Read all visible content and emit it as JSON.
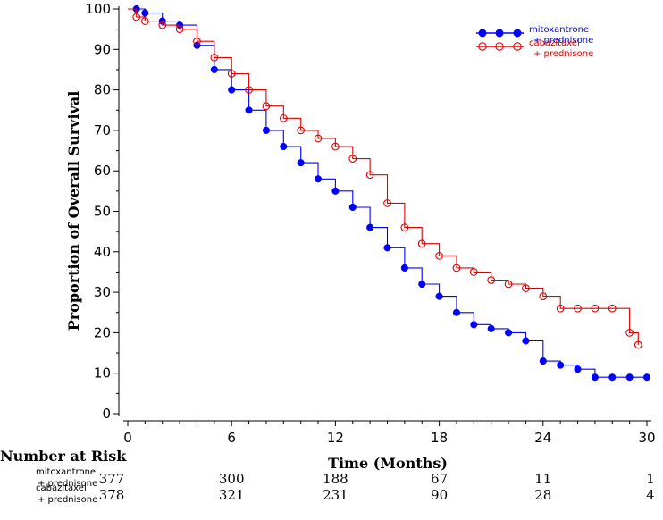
{
  "chart_data": {
    "type": "line",
    "subtype": "kaplan-meier",
    "xlabel": "Time (Months)",
    "ylabel": "Proportion of Overall Survival",
    "xlim": [
      0,
      30
    ],
    "ylim": [
      0,
      100
    ],
    "xticks": [
      0,
      6,
      12,
      18,
      24,
      30
    ],
    "yticks": [
      0,
      10,
      20,
      30,
      40,
      50,
      60,
      70,
      80,
      90,
      100
    ],
    "grid": false,
    "legend_position": "top-right",
    "series": [
      {
        "name": "mitoxantrone\n+ prednisone",
        "color": "#0000ff",
        "marker": "filled-circle",
        "points": [
          [
            0,
            100
          ],
          [
            0.5,
            100
          ],
          [
            1,
            99
          ],
          [
            2,
            97
          ],
          [
            3,
            96
          ],
          [
            4,
            91
          ],
          [
            5,
            85
          ],
          [
            6,
            80
          ],
          [
            7,
            75
          ],
          [
            8,
            70
          ],
          [
            9,
            66
          ],
          [
            10,
            62
          ],
          [
            11,
            58
          ],
          [
            12,
            55
          ],
          [
            13,
            51
          ],
          [
            14,
            46
          ],
          [
            15,
            41
          ],
          [
            16,
            36
          ],
          [
            17,
            32
          ],
          [
            18,
            29
          ],
          [
            19,
            25
          ],
          [
            20,
            22
          ],
          [
            21,
            21
          ],
          [
            22,
            20
          ],
          [
            23,
            18
          ],
          [
            24,
            13
          ],
          [
            25,
            12
          ],
          [
            26,
            11
          ],
          [
            27,
            9
          ],
          [
            28,
            9
          ],
          [
            29,
            9
          ],
          [
            30,
            9
          ]
        ]
      },
      {
        "name": "cabazitaxel\n+ prednisone",
        "color": "#e00000",
        "marker": "open-circle",
        "points": [
          [
            0,
            100
          ],
          [
            0.5,
            98
          ],
          [
            1,
            97
          ],
          [
            2,
            96
          ],
          [
            3,
            95
          ],
          [
            4,
            92
          ],
          [
            5,
            88
          ],
          [
            6,
            84
          ],
          [
            7,
            80
          ],
          [
            8,
            76
          ],
          [
            9,
            73
          ],
          [
            10,
            70
          ],
          [
            11,
            68
          ],
          [
            12,
            66
          ],
          [
            13,
            63
          ],
          [
            14,
            59
          ],
          [
            15,
            52
          ],
          [
            16,
            46
          ],
          [
            17,
            42
          ],
          [
            18,
            39
          ],
          [
            19,
            36
          ],
          [
            20,
            35
          ],
          [
            21,
            33
          ],
          [
            22,
            32
          ],
          [
            23,
            31
          ],
          [
            24,
            29
          ],
          [
            25,
            26
          ],
          [
            26,
            26
          ],
          [
            27,
            26
          ],
          [
            28,
            26
          ],
          [
            29,
            20
          ],
          [
            29.5,
            17
          ]
        ]
      }
    ],
    "risk_table": {
      "title": "Number at Risk",
      "times": [
        0,
        6,
        12,
        18,
        24,
        30
      ],
      "rows": [
        {
          "label": "mitoxantrone\n+ prednisone",
          "values": [
            "377",
            "300",
            "188",
            "67",
            "11",
            "1"
          ]
        },
        {
          "label": "cabazitaxel\n+ prednisone",
          "values": [
            "378",
            "321",
            "231",
            "90",
            "28",
            "4"
          ]
        }
      ]
    }
  }
}
